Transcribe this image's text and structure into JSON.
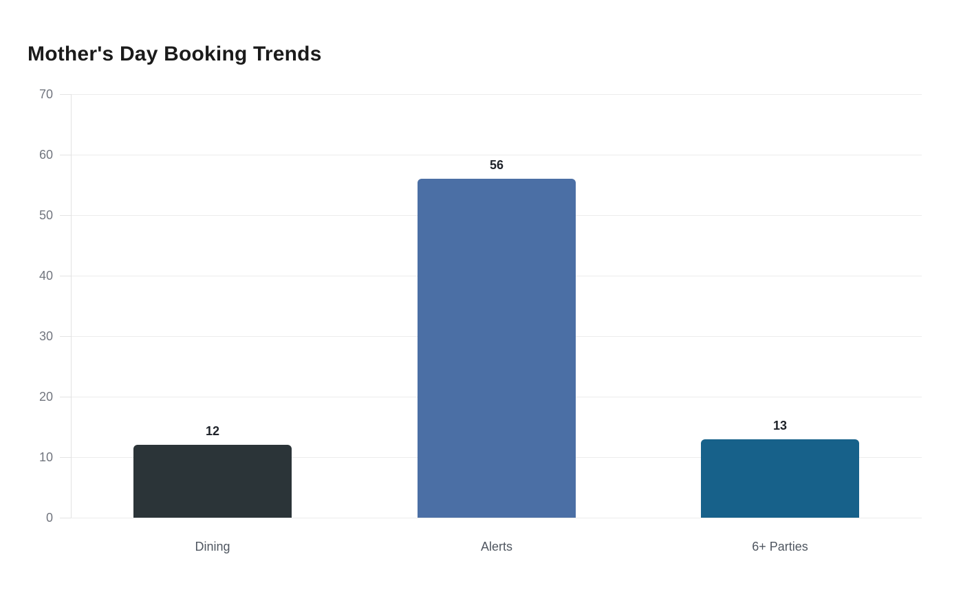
{
  "page": {
    "background": "#ffffff"
  },
  "chart_data": {
    "type": "bar",
    "title": "Mother's Day Booking Trends",
    "categories": [
      "Dining",
      "Alerts",
      "6+ Parties"
    ],
    "values": [
      12,
      56,
      13
    ],
    "value_labels": [
      "12",
      "56",
      "13"
    ],
    "bar_colors": [
      "#2b3438",
      "#4b6fa5",
      "#17618a"
    ],
    "xlabel": "",
    "ylabel": "",
    "ylim": [
      0,
      70
    ],
    "yticks": [
      0,
      10,
      20,
      30,
      40,
      50,
      60,
      70
    ],
    "grid": true,
    "legend": "none",
    "colors": {
      "grid": "#ececec",
      "axis_line": "#e2e2e2",
      "y_tick_label": "#71757e",
      "x_tick_label": "#4f5660",
      "value_label": "#1d2128",
      "title": "#1b1b1b",
      "background": "#ffffff"
    }
  }
}
